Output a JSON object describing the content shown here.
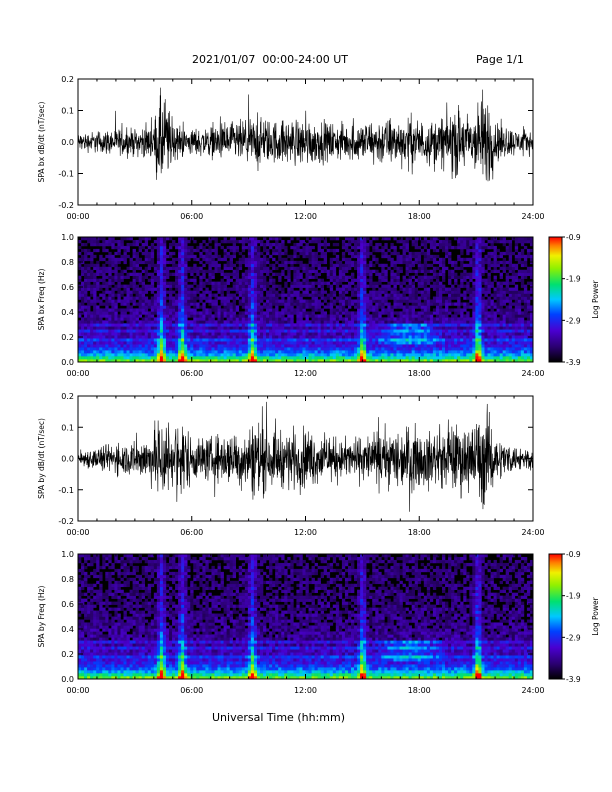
{
  "header": {
    "title": "2021/01/07  00:00-24:00 UT",
    "page": "Page 1/1"
  },
  "footer": {
    "xlabel": "Universal Time (hh:mm)"
  },
  "colors": {
    "trace": "#000000",
    "colormap": [
      "#000000",
      "#1a0040",
      "#3c00a0",
      "#2020ff",
      "#00c8ff",
      "#00e070",
      "#80f000",
      "#f0f000",
      "#ff8000",
      "#ff0000"
    ]
  },
  "chart_data": [
    {
      "id": "bx-dbdt",
      "type": "line",
      "ylabel": "SPA bx dB/dt (nT/sec)",
      "ylim": [
        -0.2,
        0.2
      ],
      "yticks": [
        -0.2,
        -0.1,
        0.0,
        0.1,
        0.2
      ],
      "ytick_labels": [
        "-0.2",
        "-0.1",
        "0.0",
        "0.1",
        "0.2"
      ],
      "xlim": [
        0,
        24
      ],
      "xticks": [
        0,
        6,
        12,
        18,
        24
      ],
      "xtick_labels": [
        "00:00",
        "06:00",
        "12:00",
        "18:00",
        "24:00"
      ],
      "x": [
        0,
        1,
        2,
        3,
        4,
        4.3,
        4.6,
        5,
        5.5,
        6,
        7,
        8,
        9,
        9.5,
        10,
        11,
        12,
        13,
        14,
        15,
        16,
        17,
        17.5,
        18,
        19,
        19.5,
        20,
        20.5,
        21,
        21.3,
        21.6,
        22,
        23,
        24
      ],
      "amplitude": [
        0.04,
        0.05,
        0.06,
        0.06,
        0.08,
        0.22,
        0.22,
        0.09,
        0.07,
        0.06,
        0.07,
        0.09,
        0.1,
        0.12,
        0.1,
        0.1,
        0.11,
        0.09,
        0.08,
        0.09,
        0.11,
        0.1,
        0.12,
        0.1,
        0.1,
        0.14,
        0.16,
        0.13,
        0.15,
        0.22,
        0.22,
        0.1,
        0.06,
        0.05
      ]
    },
    {
      "id": "bx-spectrogram",
      "type": "heatmap",
      "ylabel": "SPA bx Freq (Hz)",
      "ylim": [
        0.0,
        1.0
      ],
      "yticks": [
        0.0,
        0.2,
        0.4,
        0.6,
        0.8,
        1.0
      ],
      "ytick_labels": [
        "0.0",
        "0.2",
        "0.4",
        "0.6",
        "0.8",
        "1.0"
      ],
      "xlim": [
        0,
        24
      ],
      "xticks": [
        0,
        6,
        12,
        18,
        24
      ],
      "xtick_labels": [
        "00:00",
        "06:00",
        "12:00",
        "18:00",
        "24:00"
      ],
      "colorbar": {
        "label": "Log Power",
        "range": [
          -3.9,
          -0.9
        ],
        "ticks": [
          -3.9,
          -2.9,
          -1.9,
          -0.9
        ],
        "tick_labels": [
          "-3.9",
          "-2.9",
          "-1.9",
          "-0.9"
        ]
      },
      "bright_columns_hours": [
        4.4,
        5.5,
        9.2,
        15.0,
        21.1
      ],
      "enhanced_band": {
        "hours": [
          15.5,
          19.5
        ],
        "freq_hz": [
          0.15,
          0.3
        ]
      },
      "lines_hz": [
        0.17,
        0.24,
        0.3
      ]
    },
    {
      "id": "by-dbdt",
      "type": "line",
      "ylabel": "SPA by dB/dt (nT/sec)",
      "ylim": [
        -0.2,
        0.2
      ],
      "yticks": [
        -0.2,
        -0.1,
        0.0,
        0.1,
        0.2
      ],
      "ytick_labels": [
        "-0.2",
        "-0.1",
        "0.0",
        "0.1",
        "0.2"
      ],
      "xlim": [
        0,
        24
      ],
      "xticks": [
        0,
        6,
        12,
        18,
        24
      ],
      "xtick_labels": [
        "00:00",
        "06:00",
        "12:00",
        "18:00",
        "24:00"
      ],
      "x": [
        0,
        1,
        2,
        3,
        4,
        4.3,
        4.6,
        5,
        5.5,
        6,
        7,
        8,
        9,
        9.5,
        10,
        11,
        12,
        13,
        14,
        15,
        16,
        17,
        17.5,
        18,
        19,
        19.5,
        20,
        20.5,
        21,
        21.3,
        21.6,
        22,
        23,
        24
      ],
      "amplitude": [
        0.04,
        0.05,
        0.07,
        0.08,
        0.12,
        0.22,
        0.22,
        0.12,
        0.2,
        0.1,
        0.1,
        0.12,
        0.14,
        0.22,
        0.12,
        0.13,
        0.14,
        0.1,
        0.09,
        0.1,
        0.12,
        0.14,
        0.15,
        0.13,
        0.12,
        0.14,
        0.16,
        0.15,
        0.18,
        0.22,
        0.22,
        0.1,
        0.06,
        0.05
      ]
    },
    {
      "id": "by-spectrogram",
      "type": "heatmap",
      "ylabel": "SPA by Freq (Hz)",
      "ylim": [
        0.0,
        1.0
      ],
      "yticks": [
        0.0,
        0.2,
        0.4,
        0.6,
        0.8,
        1.0
      ],
      "ytick_labels": [
        "0.0",
        "0.2",
        "0.4",
        "0.6",
        "0.8",
        "1.0"
      ],
      "xlim": [
        0,
        24
      ],
      "xticks": [
        0,
        6,
        12,
        18,
        24
      ],
      "xtick_labels": [
        "00:00",
        "06:00",
        "12:00",
        "18:00",
        "24:00"
      ],
      "colorbar": {
        "label": "Log Power",
        "range": [
          -3.9,
          -0.9
        ],
        "ticks": [
          -3.9,
          -2.9,
          -1.9,
          -0.9
        ],
        "tick_labels": [
          "-3.9",
          "-2.9",
          "-1.9",
          "-0.9"
        ]
      },
      "bright_columns_hours": [
        4.4,
        5.5,
        9.2,
        15.0,
        21.1
      ],
      "enhanced_band": {
        "hours": [
          15.5,
          19.5
        ],
        "freq_hz": [
          0.15,
          0.3
        ]
      },
      "lines_hz": [
        0.17,
        0.24,
        0.3
      ]
    }
  ]
}
